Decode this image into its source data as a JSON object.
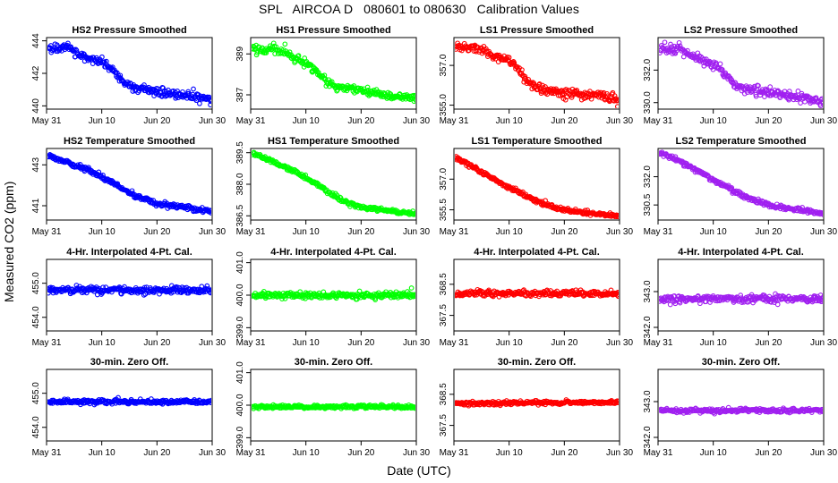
{
  "figure": {
    "title": "SPL   AIRCOA D   080601 to 080630   Calibration Values",
    "ylabel": "Measured CO2 (ppm)",
    "xlabel": "Date (UTC)"
  },
  "colors": {
    "HS2": "#0000ff",
    "HS1": "#00ff00",
    "LS1": "#ff0000",
    "LS2": "#a020f0"
  },
  "chart_data": [
    {
      "type": "scatter",
      "title": "HS2 Pressure Smoothed",
      "series": "HS2",
      "xlim": [
        0,
        30
      ],
      "ylim": [
        439.8,
        444.2
      ],
      "yticks": [
        "440",
        "442",
        "444"
      ],
      "ytick_values": [
        440,
        442,
        444
      ],
      "xticks": [
        "May 31",
        "Jun 10",
        "Jun 20",
        "Jun 30"
      ],
      "xtick_values": [
        0,
        10,
        20,
        30
      ],
      "trend": [
        [
          0,
          443.6
        ],
        [
          2,
          443.5
        ],
        [
          4,
          443.7
        ],
        [
          6,
          443.1
        ],
        [
          8,
          442.9
        ],
        [
          10,
          442.7
        ],
        [
          12,
          442.2
        ],
        [
          14,
          441.4
        ],
        [
          16,
          441.1
        ],
        [
          18,
          441.0
        ],
        [
          20,
          440.9
        ],
        [
          22,
          440.8
        ],
        [
          24,
          440.7
        ],
        [
          26,
          440.6
        ],
        [
          28,
          440.5
        ],
        [
          30,
          440.3
        ]
      ],
      "noise": 0.22
    },
    {
      "type": "scatter",
      "title": "HS1 Pressure Smoothed",
      "series": "HS1",
      "xlim": [
        0,
        30
      ],
      "ylim": [
        386.3,
        389.8
      ],
      "yticks": [
        "387",
        "389"
      ],
      "ytick_values": [
        387,
        389
      ],
      "xticks": [
        "May 31",
        "Jun 10",
        "Jun 20",
        "Jun 30"
      ],
      "xtick_values": [
        0,
        10,
        20,
        30
      ],
      "trend": [
        [
          0,
          389.3
        ],
        [
          2,
          389.2
        ],
        [
          4,
          389.3
        ],
        [
          6,
          389.1
        ],
        [
          8,
          388.8
        ],
        [
          10,
          388.6
        ],
        [
          12,
          388.1
        ],
        [
          14,
          387.6
        ],
        [
          16,
          387.4
        ],
        [
          18,
          387.3
        ],
        [
          20,
          387.2
        ],
        [
          22,
          387.1
        ],
        [
          24,
          387.0
        ],
        [
          26,
          386.9
        ],
        [
          28,
          386.9
        ],
        [
          30,
          386.8
        ]
      ],
      "noise": 0.18
    },
    {
      "type": "scatter",
      "title": "LS1 Pressure Smoothed",
      "series": "LS1",
      "xlim": [
        0,
        30
      ],
      "ylim": [
        354.8,
        358.4
      ],
      "yticks": [
        "355.0",
        "357.0"
      ],
      "ytick_values": [
        355,
        357
      ],
      "xticks": [
        "May 31",
        "Jun 10",
        "Jun 20",
        "Jun 30"
      ],
      "xtick_values": [
        0,
        10,
        20,
        30
      ],
      "trend": [
        [
          0,
          358.0
        ],
        [
          2,
          357.9
        ],
        [
          4,
          357.9
        ],
        [
          6,
          357.6
        ],
        [
          8,
          357.4
        ],
        [
          10,
          357.2
        ],
        [
          12,
          356.7
        ],
        [
          14,
          356.0
        ],
        [
          16,
          355.8
        ],
        [
          18,
          355.7
        ],
        [
          20,
          355.6
        ],
        [
          22,
          355.6
        ],
        [
          24,
          355.5
        ],
        [
          26,
          355.5
        ],
        [
          28,
          355.4
        ],
        [
          30,
          355.3
        ]
      ],
      "noise": 0.2
    },
    {
      "type": "scatter",
      "title": "LS2 Pressure Smoothed",
      "series": "LS2",
      "xlim": [
        0,
        30
      ],
      "ylim": [
        329.6,
        334.0
      ],
      "yticks": [
        "330.0",
        "332.0"
      ],
      "ytick_values": [
        330,
        332
      ],
      "xticks": [
        "May 31",
        "Jun 10",
        "Jun 20",
        "Jun 30"
      ],
      "xtick_values": [
        0,
        10,
        20,
        30
      ],
      "trend": [
        [
          0,
          333.3
        ],
        [
          2,
          333.2
        ],
        [
          4,
          333.3
        ],
        [
          6,
          332.9
        ],
        [
          8,
          332.6
        ],
        [
          10,
          332.4
        ],
        [
          12,
          331.8
        ],
        [
          14,
          331.1
        ],
        [
          16,
          330.8
        ],
        [
          18,
          330.7
        ],
        [
          20,
          330.6
        ],
        [
          22,
          330.5
        ],
        [
          24,
          330.4
        ],
        [
          26,
          330.3
        ],
        [
          28,
          330.2
        ],
        [
          30,
          330.0
        ]
      ],
      "noise": 0.25
    },
    {
      "type": "scatter",
      "title": "HS2 Temperature Smoothed",
      "series": "HS2",
      "xlim": [
        0,
        30
      ],
      "ylim": [
        440.3,
        443.8
      ],
      "yticks": [
        "441",
        "443"
      ],
      "ytick_values": [
        441,
        443
      ],
      "xticks": [
        "May 31",
        "Jun 10",
        "Jun 20",
        "Jun 30"
      ],
      "xtick_values": [
        0,
        10,
        20,
        30
      ],
      "trend": [
        [
          0,
          443.5
        ],
        [
          4,
          443.1
        ],
        [
          8,
          442.7
        ],
        [
          12,
          442.1
        ],
        [
          16,
          441.5
        ],
        [
          20,
          441.1
        ],
        [
          24,
          440.95
        ],
        [
          28,
          440.8
        ],
        [
          30,
          440.7
        ]
      ],
      "noise": 0.1
    },
    {
      "type": "scatter",
      "title": "HS1 Temperature Smoothed",
      "series": "HS1",
      "xlim": [
        0,
        30
      ],
      "ylim": [
        386.3,
        389.7
      ],
      "yticks": [
        "386.5",
        "388.0",
        "389.5"
      ],
      "ytick_values": [
        386.5,
        388,
        389.5
      ],
      "xticks": [
        "May 31",
        "Jun 10",
        "Jun 20",
        "Jun 30"
      ],
      "xtick_values": [
        0,
        10,
        20,
        30
      ],
      "trend": [
        [
          0,
          389.5
        ],
        [
          4,
          389.1
        ],
        [
          8,
          388.6
        ],
        [
          12,
          388.0
        ],
        [
          16,
          387.3
        ],
        [
          20,
          386.9
        ],
        [
          24,
          386.8
        ],
        [
          28,
          386.65
        ],
        [
          30,
          386.6
        ]
      ],
      "noise": 0.08
    },
    {
      "type": "scatter",
      "title": "LS1 Temperature Smoothed",
      "series": "LS1",
      "xlim": [
        0,
        30
      ],
      "ylim": [
        355.0,
        358.5
      ],
      "yticks": [
        "355.5",
        "357.0"
      ],
      "ytick_values": [
        355.5,
        357
      ],
      "xticks": [
        "May 31",
        "Jun 10",
        "Jun 20",
        "Jun 30"
      ],
      "xtick_values": [
        0,
        10,
        20,
        30
      ],
      "trend": [
        [
          0,
          358.1
        ],
        [
          4,
          357.5
        ],
        [
          8,
          356.9
        ],
        [
          12,
          356.3
        ],
        [
          16,
          355.8
        ],
        [
          20,
          355.5
        ],
        [
          24,
          355.35
        ],
        [
          28,
          355.25
        ],
        [
          30,
          355.2
        ]
      ],
      "noise": 0.09
    },
    {
      "type": "scatter",
      "title": "LS2 Temperature Smoothed",
      "series": "LS2",
      "xlim": [
        0,
        30
      ],
      "ylim": [
        329.7,
        333.5
      ],
      "yticks": [
        "330.5",
        "332.0"
      ],
      "ytick_values": [
        330.5,
        332
      ],
      "xticks": [
        "May 31",
        "Jun 10",
        "Jun 20",
        "Jun 30"
      ],
      "xtick_values": [
        0,
        10,
        20,
        30
      ],
      "trend": [
        [
          0,
          333.3
        ],
        [
          4,
          332.8
        ],
        [
          8,
          332.2
        ],
        [
          12,
          331.5
        ],
        [
          16,
          330.9
        ],
        [
          20,
          330.5
        ],
        [
          24,
          330.3
        ],
        [
          28,
          330.15
        ],
        [
          30,
          330.0
        ]
      ],
      "noise": 0.1
    },
    {
      "type": "scatter",
      "title": "4-Hr. Interpolated 4-Pt. Cal.",
      "series": "HS2",
      "xlim": [
        0,
        30
      ],
      "ylim": [
        453.6,
        455.7
      ],
      "yticks": [
        "454.0",
        "455.0"
      ],
      "ytick_values": [
        454,
        455
      ],
      "xticks": [
        "May 31",
        "Jun 10",
        "Jun 20",
        "Jun 30"
      ],
      "xtick_values": [
        0,
        10,
        20,
        30
      ],
      "trend": [
        [
          0,
          454.8
        ],
        [
          30,
          454.8
        ]
      ],
      "noise": 0.09
    },
    {
      "type": "scatter",
      "title": "4-Hr. Interpolated 4-Pt. Cal.",
      "series": "HS1",
      "xlim": [
        0,
        30
      ],
      "ylim": [
        398.9,
        401.1
      ],
      "yticks": [
        "399.0",
        "400.0",
        "401.0"
      ],
      "ytick_values": [
        399,
        400,
        401
      ],
      "xticks": [
        "May 31",
        "Jun 10",
        "Jun 20",
        "Jun 30"
      ],
      "xtick_values": [
        0,
        10,
        20,
        30
      ],
      "trend": [
        [
          0,
          400.0
        ],
        [
          30,
          400.0
        ]
      ],
      "noise": 0.09
    },
    {
      "type": "scatter",
      "title": "4-Hr. Interpolated 4-Pt. Cal.",
      "series": "LS1",
      "xlim": [
        0,
        30
      ],
      "ylim": [
        367.0,
        369.3
      ],
      "yticks": [
        "367.5",
        "368.5"
      ],
      "ytick_values": [
        367.5,
        368.5
      ],
      "xticks": [
        "May 31",
        "Jun 10",
        "Jun 20",
        "Jun 30"
      ],
      "xtick_values": [
        0,
        10,
        20,
        30
      ],
      "trend": [
        [
          0,
          368.2
        ],
        [
          30,
          368.2
        ]
      ],
      "noise": 0.09
    },
    {
      "type": "scatter",
      "title": "4-Hr. Interpolated 4-Pt. Cal.",
      "series": "LS2",
      "xlim": [
        0,
        30
      ],
      "ylim": [
        341.9,
        343.9
      ],
      "yticks": [
        "342.0",
        "343.0"
      ],
      "ytick_values": [
        342,
        343
      ],
      "xticks": [
        "May 31",
        "Jun 10",
        "Jun 20",
        "Jun 30"
      ],
      "xtick_values": [
        0,
        10,
        20,
        30
      ],
      "trend": [
        [
          0,
          342.8
        ],
        [
          30,
          342.8
        ]
      ],
      "noise": 0.09
    },
    {
      "type": "scatter",
      "title": "30-min. Zero Off.",
      "series": "HS2",
      "xlim": [
        0,
        30
      ],
      "ylim": [
        453.6,
        455.7
      ],
      "yticks": [
        "454.0",
        "455.0"
      ],
      "ytick_values": [
        454,
        455
      ],
      "xticks": [
        "May 31",
        "Jun 10",
        "Jun 20",
        "Jun 30"
      ],
      "xtick_values": [
        0,
        10,
        20,
        30
      ],
      "trend": [
        [
          0,
          454.75
        ],
        [
          30,
          454.75
        ]
      ],
      "noise": 0.05
    },
    {
      "type": "scatter",
      "title": "30-min. Zero Off.",
      "series": "HS1",
      "xlim": [
        0,
        30
      ],
      "ylim": [
        398.9,
        401.1
      ],
      "yticks": [
        "399.0",
        "400.0",
        "401.0"
      ],
      "ytick_values": [
        399,
        400,
        401
      ],
      "xticks": [
        "May 31",
        "Jun 10",
        "Jun 20",
        "Jun 30"
      ],
      "xtick_values": [
        0,
        10,
        20,
        30
      ],
      "trend": [
        [
          0,
          399.95
        ],
        [
          30,
          399.95
        ]
      ],
      "noise": 0.05
    },
    {
      "type": "scatter",
      "title": "30-min. Zero Off.",
      "series": "LS1",
      "xlim": [
        0,
        30
      ],
      "ylim": [
        367.0,
        369.3
      ],
      "yticks": [
        "367.5",
        "368.5"
      ],
      "ytick_values": [
        367.5,
        368.5
      ],
      "xticks": [
        "May 31",
        "Jun 10",
        "Jun 20",
        "Jun 30"
      ],
      "xtick_values": [
        0,
        10,
        20,
        30
      ],
      "trend": [
        [
          0,
          368.2
        ],
        [
          30,
          368.25
        ]
      ],
      "noise": 0.05
    },
    {
      "type": "scatter",
      "title": "30-min. Zero Off.",
      "series": "LS2",
      "xlim": [
        0,
        30
      ],
      "ylim": [
        341.9,
        343.9
      ],
      "yticks": [
        "342.0",
        "343.0"
      ],
      "ytick_values": [
        342,
        343
      ],
      "xticks": [
        "May 31",
        "Jun 10",
        "Jun 20",
        "Jun 30"
      ],
      "xtick_values": [
        0,
        10,
        20,
        30
      ],
      "trend": [
        [
          0,
          342.75
        ],
        [
          30,
          342.75
        ]
      ],
      "noise": 0.05
    }
  ]
}
